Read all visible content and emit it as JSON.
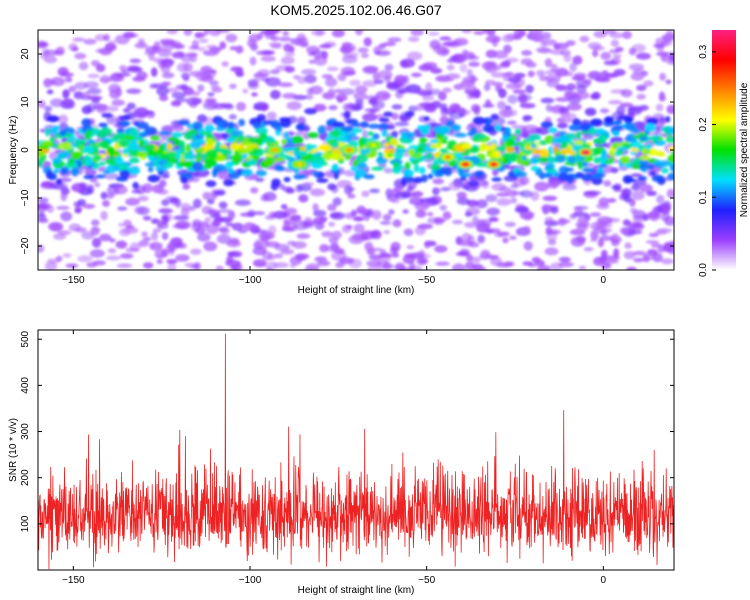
{
  "title": "KOM5.2025.102.06.46.G07",
  "chart_data": [
    {
      "type": "heatmap",
      "xlabel": "Height of straight line (km)",
      "ylabel": "Frequency (Hz)",
      "xlim": [
        -160,
        20
      ],
      "ylim": [
        -25,
        25
      ],
      "xticks": [
        -150,
        -100,
        -50,
        0
      ],
      "yticks": [
        -20,
        -10,
        0,
        10,
        20
      ],
      "colorbar": {
        "label": "Normalized spectral amplitude",
        "range": [
          0,
          0.33
        ],
        "ticks": [
          0.0,
          0.1,
          0.2,
          0.3
        ],
        "colormap": [
          "#ffffff",
          "#9b3fff",
          "#2020ff",
          "#00e0ff",
          "#00e000",
          "#ffff00",
          "#ff8000",
          "#ff0000",
          "#ff2080"
        ]
      },
      "band": {
        "center_freq_hz": 0,
        "half_width_hz": 7
      },
      "peaks": [
        {
          "x": -5,
          "y": -0.5,
          "value": 0.32
        },
        {
          "x": -44,
          "y": -1.5,
          "value": 0.25
        },
        {
          "x": -39,
          "y": -3,
          "value": 0.3
        },
        {
          "x": -31,
          "y": -3,
          "value": 0.3
        },
        {
          "x": -72,
          "y": 0,
          "value": 0.24
        },
        {
          "x": -93,
          "y": 0,
          "value": 0.23
        },
        {
          "x": -86,
          "y": -3,
          "value": 0.22
        },
        {
          "x": -65,
          "y": 1,
          "value": 0.2
        }
      ]
    },
    {
      "type": "line",
      "xlabel": "Height of straight line (km)",
      "ylabel": "SNR (10 * v/v)",
      "xlim": [
        -160,
        20
      ],
      "ylim": [
        0,
        520
      ],
      "xticks": [
        -150,
        -100,
        -50,
        0
      ],
      "yticks": [
        100,
        200,
        300,
        400,
        500
      ],
      "color": "#ee2222",
      "series": [
        {
          "name": "",
          "baseline": 120,
          "spread": 160,
          "max_value": 512,
          "max_at_x": -107
        }
      ]
    }
  ]
}
